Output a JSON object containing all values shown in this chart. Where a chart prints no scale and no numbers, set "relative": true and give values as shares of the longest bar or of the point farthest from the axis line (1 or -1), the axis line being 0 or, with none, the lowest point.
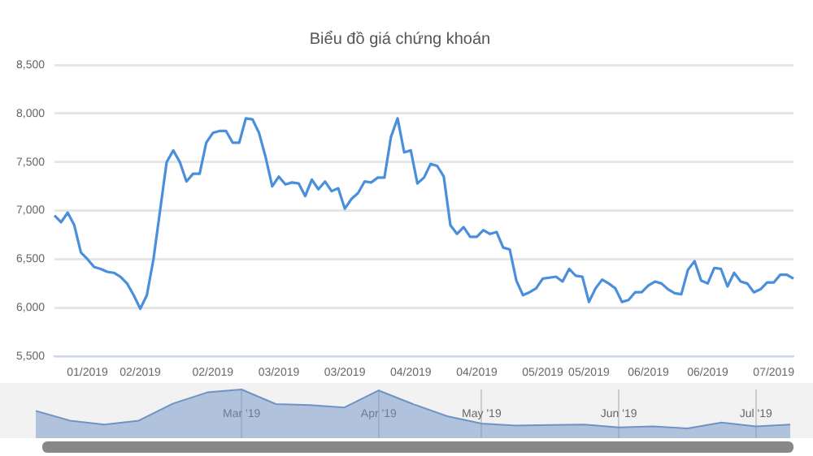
{
  "chart_data": [
    {
      "type": "line",
      "title": "Biểu đồ giá chứng khoán",
      "categories": [
        null,
        null,
        null,
        null,
        null,
        "01/2019",
        null,
        null,
        null,
        null,
        null,
        null,
        null,
        "02/2019",
        null,
        null,
        null,
        null,
        null,
        null,
        null,
        null,
        null,
        null,
        "02/2019",
        null,
        null,
        null,
        null,
        null,
        null,
        null,
        null,
        null,
        "03/2019",
        null,
        null,
        null,
        null,
        null,
        null,
        null,
        null,
        null,
        "03/2019",
        null,
        null,
        null,
        null,
        null,
        null,
        null,
        null,
        null,
        "04/2019",
        null,
        null,
        null,
        null,
        null,
        null,
        null,
        null,
        null,
        "04/2019",
        null,
        null,
        null,
        null,
        null,
        null,
        null,
        null,
        null,
        "05/2019",
        null,
        null,
        null,
        null,
        null,
        null,
        "05/2019",
        null,
        null,
        null,
        null,
        null,
        null,
        null,
        null,
        "06/2019",
        null,
        null,
        null,
        null,
        null,
        null,
        null,
        null,
        "06/2019",
        null,
        null,
        null,
        null,
        null,
        null,
        null,
        null,
        null,
        "07/2019",
        null,
        null,
        null
      ],
      "series": [
        {
          "color": "#4a8fdc",
          "values": [
            6950,
            6880,
            6980,
            6850,
            6570,
            6500,
            6420,
            6400,
            6370,
            6360,
            6320,
            6250,
            6130,
            5990,
            6130,
            6500,
            7000,
            7500,
            7620,
            7500,
            7300,
            7380,
            7380,
            7700,
            7800,
            7820,
            7820,
            7700,
            7700,
            7950,
            7940,
            7800,
            7550,
            7250,
            7350,
            7270,
            7290,
            7280,
            7150,
            7320,
            7220,
            7300,
            7200,
            7230,
            7020,
            7120,
            7180,
            7300,
            7290,
            7340,
            7340,
            7760,
            7950,
            7600,
            7620,
            7280,
            7340,
            7480,
            7460,
            7350,
            6850,
            6760,
            6830,
            6730,
            6730,
            6800,
            6760,
            6780,
            6620,
            6600,
            6280,
            6130,
            6160,
            6200,
            6300,
            6310,
            6320,
            6270,
            6400,
            6330,
            6320,
            6060,
            6200,
            6290,
            6250,
            6200,
            6060,
            6080,
            6160,
            6160,
            6230,
            6270,
            6250,
            6190,
            6150,
            6140,
            6390,
            6480,
            6280,
            6250,
            6410,
            6400,
            6220,
            6360,
            6270,
            6250,
            6160,
            6190,
            6260,
            6260,
            6340,
            6340,
            6300
          ]
        }
      ],
      "ylim": [
        5500,
        8500
      ],
      "yticks": [
        {
          "value": 5500,
          "label": "5,500"
        },
        {
          "value": 6000,
          "label": "6,000"
        },
        {
          "value": 6500,
          "label": "6,500"
        },
        {
          "value": 7000,
          "label": "7,000"
        },
        {
          "value": 7500,
          "label": "7,500"
        },
        {
          "value": 8000,
          "label": "8,000"
        },
        {
          "value": 8500,
          "label": "8,500"
        }
      ],
      "grid": "y",
      "marker": "none",
      "line_style": "solid"
    },
    {
      "type": "area",
      "relative": true,
      "categories": [
        null,
        null,
        null,
        null,
        null,
        null,
        "Mar '19",
        null,
        null,
        null,
        "Apr '19",
        null,
        null,
        "May '19",
        null,
        null,
        null,
        "Jun '19",
        null,
        null,
        null,
        "Jul '19",
        null
      ],
      "series": [
        {
          "color": "#6f93c6",
          "values": [
            0.56,
            0.36,
            0.28,
            0.36,
            0.71,
            0.94,
            1,
            0.7,
            0.68,
            0.63,
            0.98,
            0.7,
            0.45,
            0.3,
            0.26,
            0.27,
            0.28,
            0.22,
            0.24,
            0.2,
            0.32,
            0.24,
            0.28
          ]
        }
      ],
      "grid": "x",
      "tick_labels": "x",
      "marker": "none"
    }
  ]
}
